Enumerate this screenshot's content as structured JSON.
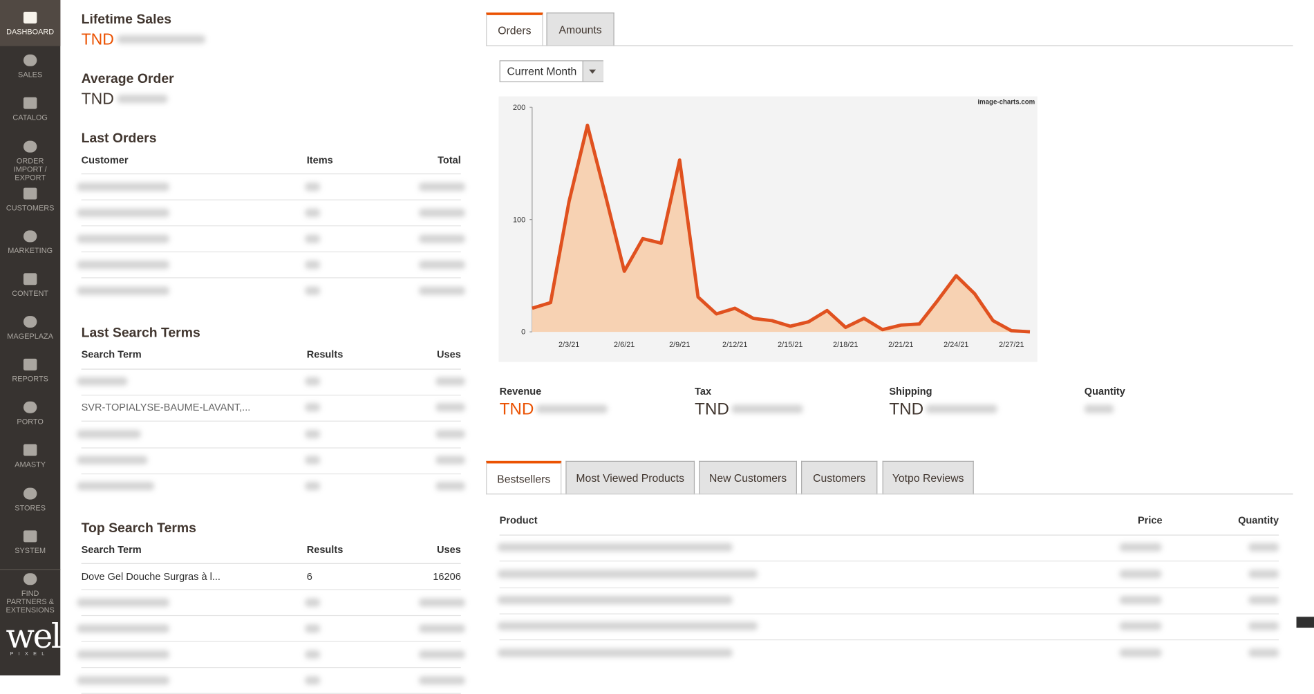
{
  "sidebar": {
    "items": [
      "DASHBOARD",
      "SALES",
      "CATALOG",
      "ORDER IMPORT / EXPORT",
      "CUSTOMERS",
      "MARKETING",
      "CONTENT",
      "MAGEPLAZA",
      "REPORTS",
      "PORTO",
      "AMASTY",
      "STORES",
      "SYSTEM",
      "FIND PARTNERS & EXTENSIONS"
    ],
    "logo": "welt",
    "logo_sub": "PIXEL"
  },
  "lifetime_sales": {
    "label": "Lifetime Sales",
    "value": "TND"
  },
  "average_order": {
    "label": "Average Order",
    "value": "TND"
  },
  "last_orders": {
    "title": "Last Orders",
    "columns": [
      "Customer",
      "Items",
      "Total"
    ]
  },
  "last_search_terms": {
    "title": "Last Search Terms",
    "columns": [
      "Search Term",
      "Results",
      "Uses"
    ],
    "rows": [
      [
        "SVR-TOPIALYSE-BAUME-LAVANT,..."
      ]
    ]
  },
  "top_search_terms": {
    "title": "Top Search Terms",
    "columns": [
      "Search Term",
      "Results",
      "Uses"
    ],
    "rows": [
      [
        "Dove Gel Douche Surgras à l...",
        "6",
        "16206"
      ]
    ]
  },
  "chart_tabs": [
    "Orders",
    "Amounts"
  ],
  "period": "Current Month",
  "chart_data": {
    "type": "area",
    "watermark": "image-charts.com",
    "color": "#e0511f",
    "fill": "#f7d2b3",
    "categories": [
      null,
      null,
      "2/3/21",
      null,
      null,
      "2/6/21",
      null,
      null,
      "2/9/21",
      null,
      null,
      "2/12/21",
      null,
      null,
      "2/15/21",
      null,
      null,
      "2/18/21",
      null,
      null,
      "2/21/21",
      null,
      null,
      "2/24/21",
      null,
      null,
      "2/27/21",
      null
    ],
    "values": [
      21,
      26,
      116,
      184,
      120,
      54,
      83,
      79,
      153,
      31,
      16,
      21,
      12,
      10,
      5,
      9,
      19,
      4,
      12,
      2,
      6,
      7,
      28,
      50,
      34,
      10,
      1,
      0
    ],
    "ylim": [
      0,
      200
    ],
    "yticks": [
      0,
      100,
      200
    ]
  },
  "totals": [
    {
      "label": "Revenue",
      "value": "TND"
    },
    {
      "label": "Tax",
      "value": "TND"
    },
    {
      "label": "Shipping",
      "value": "TND"
    },
    {
      "label": "Quantity"
    }
  ],
  "grid_tabs": [
    "Bestsellers",
    "Most Viewed Products",
    "New Customers",
    "Customers",
    "Yotpo Reviews"
  ],
  "bestsellers": {
    "columns": [
      "Product",
      "Price",
      "Quantity"
    ]
  }
}
